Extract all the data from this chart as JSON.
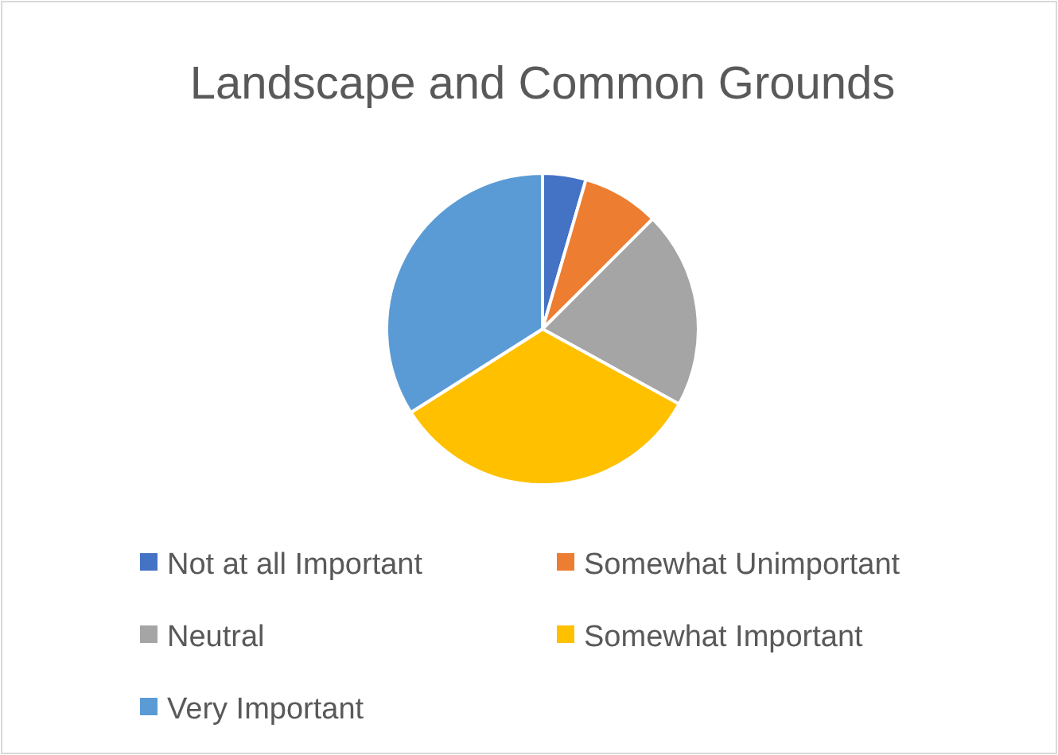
{
  "chart_data": {
    "type": "pie",
    "title": "Landscape and Common Grounds",
    "categories": [
      "Not at all Important",
      "Somewhat Unimportant",
      "Neutral",
      "Somewhat Important",
      "Very Important"
    ],
    "values": [
      4.5,
      8,
      20.5,
      33,
      34
    ],
    "colors": [
      "#4472c4",
      "#ed7d31",
      "#a5a5a5",
      "#ffc000",
      "#5b9bd5"
    ],
    "legend": "bottom"
  }
}
